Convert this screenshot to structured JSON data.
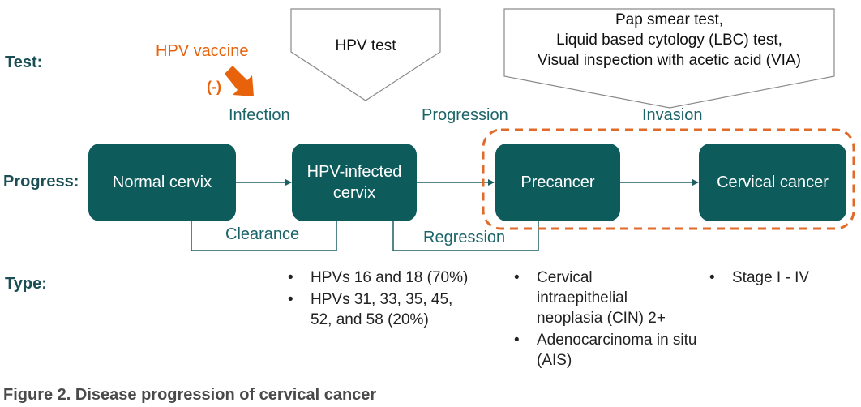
{
  "rows": {
    "test": "Test:",
    "progress": "Progress:",
    "type": "Type:"
  },
  "vaccine": {
    "label": "HPV vaccine",
    "effect": "(-)",
    "color": "#e8620c"
  },
  "tests": {
    "hpv": "HPV test",
    "cytology": [
      "Pap smear test,",
      "Liquid based cytology (LBC) test,",
      "Visual inspection with acetic acid (VIA)"
    ]
  },
  "transitions": {
    "infection": "Infection",
    "progression": "Progression",
    "invasion": "Invasion",
    "clearance": "Clearance",
    "regression": "Regression"
  },
  "stages": {
    "normal": "Normal cervix",
    "infected_line1": "HPV-infected",
    "infected_line2": "cervix",
    "precancer": "Precancer",
    "cancer": "Cervical cancer"
  },
  "types": {
    "infected": [
      "HPVs 16 and 18 (70%)",
      "HPVs 31, 33, 35, 45, 52, and 58 (20%)"
    ],
    "precancer": [
      "Cervical intraepithelial neoplasia (CIN) 2+",
      "Adenocarcinoma in situ (AIS)"
    ],
    "cancer": [
      "Stage I - IV"
    ]
  },
  "caption": "Figure 2. Disease progression of cervical cancer",
  "colors": {
    "box": "#0e5b5c",
    "label": "#1b6468",
    "dashed": "#e06a2a"
  }
}
